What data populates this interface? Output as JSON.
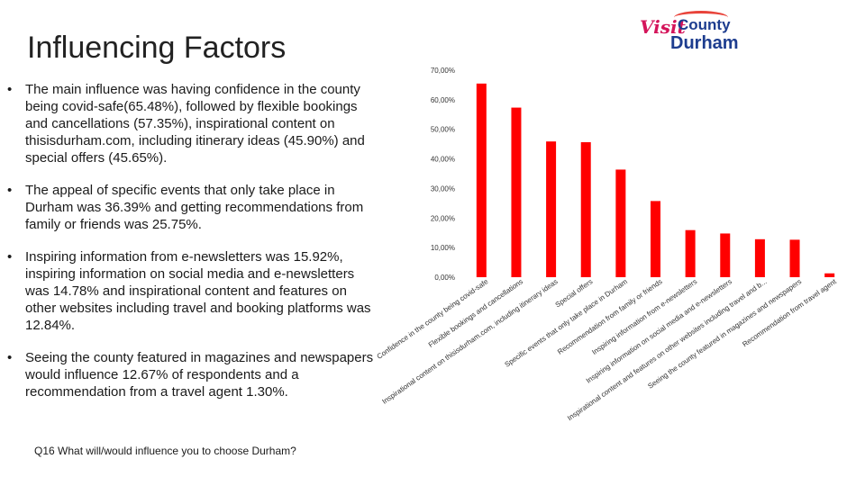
{
  "page": {
    "title": "Influencing Factors",
    "logo": {
      "visit": "Visit",
      "county": "County",
      "durham": "Durham"
    },
    "bullets": [
      "The main influence was having confidence in the county being covid-safe(65.48%), followed by flexible bookings and cancellations (57.35%), inspirational content on thisisdurham.com, including itinerary ideas (45.90%) and special offers (45.65%).",
      "The appeal of specific events that only take place in Durham was 36.39% and getting recommendations from family or friends was 25.75%.",
      "Inspiring information from e-newsletters was 15.92%, inspiring information on social media and e-newsletters was 14.78% and inspirational content and features on other websites including travel and booking platforms was 12.84%.",
      "Seeing the county featured in magazines and newspapers would influence 12.67% of respondents and a recommendation from a travel agent 1.30%."
    ],
    "bullet_symbol": "•",
    "question": "Q16  What will/would influence you to choose Durham?"
  },
  "colors": {
    "bar": "#ff0000",
    "logo_pink": "#d4145a",
    "logo_blue": "#1d3d8f"
  },
  "chart_data": {
    "type": "bar",
    "categories": [
      "Confidence in the county being covid-safe",
      "Flexible bookings and cancellations",
      "Inspirational content on thisisdurham.com, including itinerary ideas",
      "Special offers",
      "Specific events that only take place in Durham",
      "Recommendation from family or friends",
      "Inspiring information from e-newsletters",
      "Inspiring information on social media and e-newsletters",
      "Inspirational content and features on other websites including travel and b...",
      "Seeing the county featured in magazines and newspapers",
      "Recommendation from travel agent"
    ],
    "values": [
      65.48,
      57.35,
      45.9,
      45.65,
      36.39,
      25.75,
      15.92,
      14.78,
      12.84,
      12.67,
      1.3
    ],
    "ylim": [
      0,
      70
    ],
    "yticks": [
      "0,00%",
      "10,00%",
      "20,00%",
      "30,00%",
      "40,00%",
      "50,00%",
      "60,00%",
      "70,00%"
    ],
    "grid": false,
    "legend": "none"
  }
}
